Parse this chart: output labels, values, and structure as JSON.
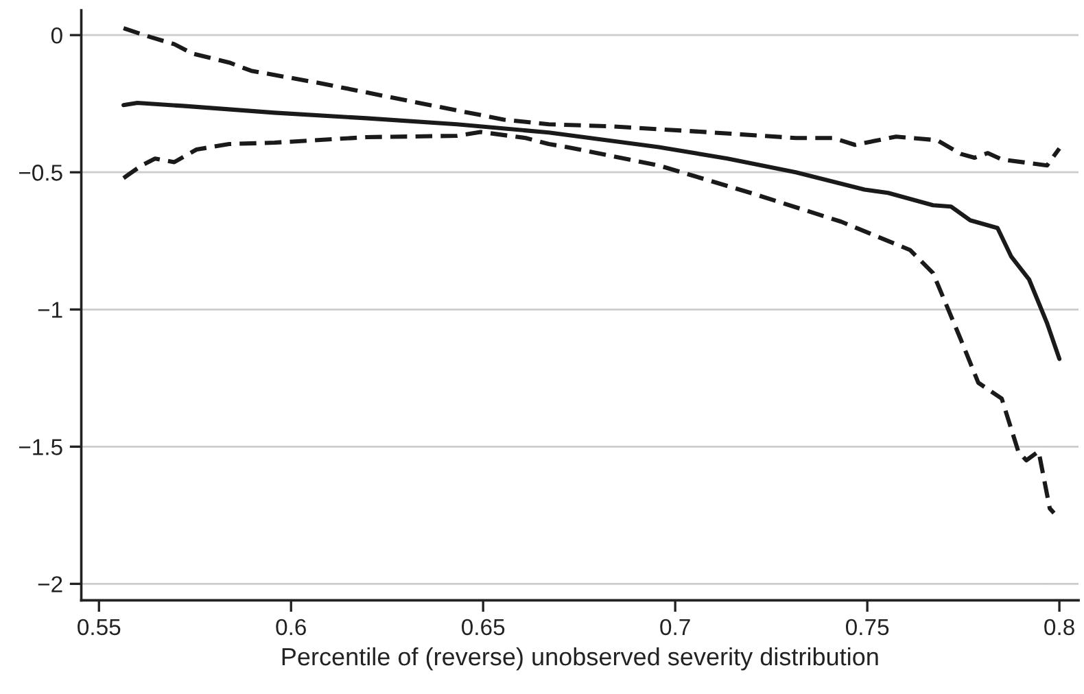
{
  "chart_data": {
    "type": "line",
    "xlabel": "Percentile of (reverse) unobserved severity distribution",
    "xlim": [
      0.5454,
      0.805
    ],
    "ylim": [
      -2.06,
      0.09
    ],
    "xticks": [
      0.55,
      0.6,
      0.65,
      0.7,
      0.75,
      0.8
    ],
    "yticks": [
      {
        "value": 0,
        "label": "0"
      },
      {
        "value": -0.5,
        "label": "−0.5"
      },
      {
        "value": -1,
        "label": "−1"
      },
      {
        "value": -1.5,
        "label": "−1.5"
      },
      {
        "value": -2,
        "label": "−2"
      }
    ],
    "grid": "y",
    "marker": "none",
    "series": [
      {
        "color": "#1a1a1a",
        "line_style": "solid",
        "x": [
          0.5564,
          0.56,
          0.5718,
          0.5957,
          0.6196,
          0.6432,
          0.6671,
          0.6957,
          0.7136,
          0.7314,
          0.7493,
          0.7554,
          0.7671,
          0.7718,
          0.7768,
          0.7839,
          0.7875,
          0.7921,
          0.7968,
          0.8
        ],
        "values": [
          -0.255,
          -0.247,
          -0.258,
          -0.283,
          -0.303,
          -0.325,
          -0.355,
          -0.408,
          -0.45,
          -0.5,
          -0.563,
          -0.575,
          -0.62,
          -0.625,
          -0.675,
          -0.703,
          -0.808,
          -0.89,
          -1.05,
          -1.18
        ]
      },
      {
        "color": "#1a1a1a",
        "line_style": "dashed",
        "x": [
          0.5564,
          0.5636,
          0.5696,
          0.5743,
          0.5839,
          0.5896,
          0.6075,
          0.6314,
          0.6554,
          0.6671,
          0.6839,
          0.7075,
          0.7314,
          0.7411,
          0.7468,
          0.7575,
          0.7682,
          0.7743,
          0.7779,
          0.7814,
          0.785,
          0.7968,
          0.8
        ],
        "values": [
          0.025,
          -0.008,
          -0.033,
          -0.067,
          -0.1,
          -0.13,
          -0.175,
          -0.242,
          -0.308,
          -0.325,
          -0.333,
          -0.353,
          -0.375,
          -0.375,
          -0.4,
          -0.37,
          -0.383,
          -0.433,
          -0.447,
          -0.43,
          -0.453,
          -0.475,
          -0.413
        ]
      },
      {
        "color": "#1a1a1a",
        "line_style": "dashed",
        "x": [
          0.5564,
          0.5611,
          0.5646,
          0.5696,
          0.5754,
          0.5839,
          0.5957,
          0.6196,
          0.6432,
          0.6493,
          0.6611,
          0.6671,
          0.6718,
          0.6957,
          0.7196,
          0.7432,
          0.7611,
          0.7671,
          0.7743,
          0.7789,
          0.785,
          0.7893,
          0.7914,
          0.7946,
          0.7975,
          0.7986
        ],
        "values": [
          -0.521,
          -0.475,
          -0.45,
          -0.463,
          -0.417,
          -0.397,
          -0.392,
          -0.372,
          -0.367,
          -0.353,
          -0.375,
          -0.397,
          -0.408,
          -0.475,
          -0.575,
          -0.68,
          -0.783,
          -0.867,
          -1.108,
          -1.267,
          -1.325,
          -1.517,
          -1.55,
          -1.517,
          -1.725,
          -1.742
        ]
      }
    ]
  }
}
